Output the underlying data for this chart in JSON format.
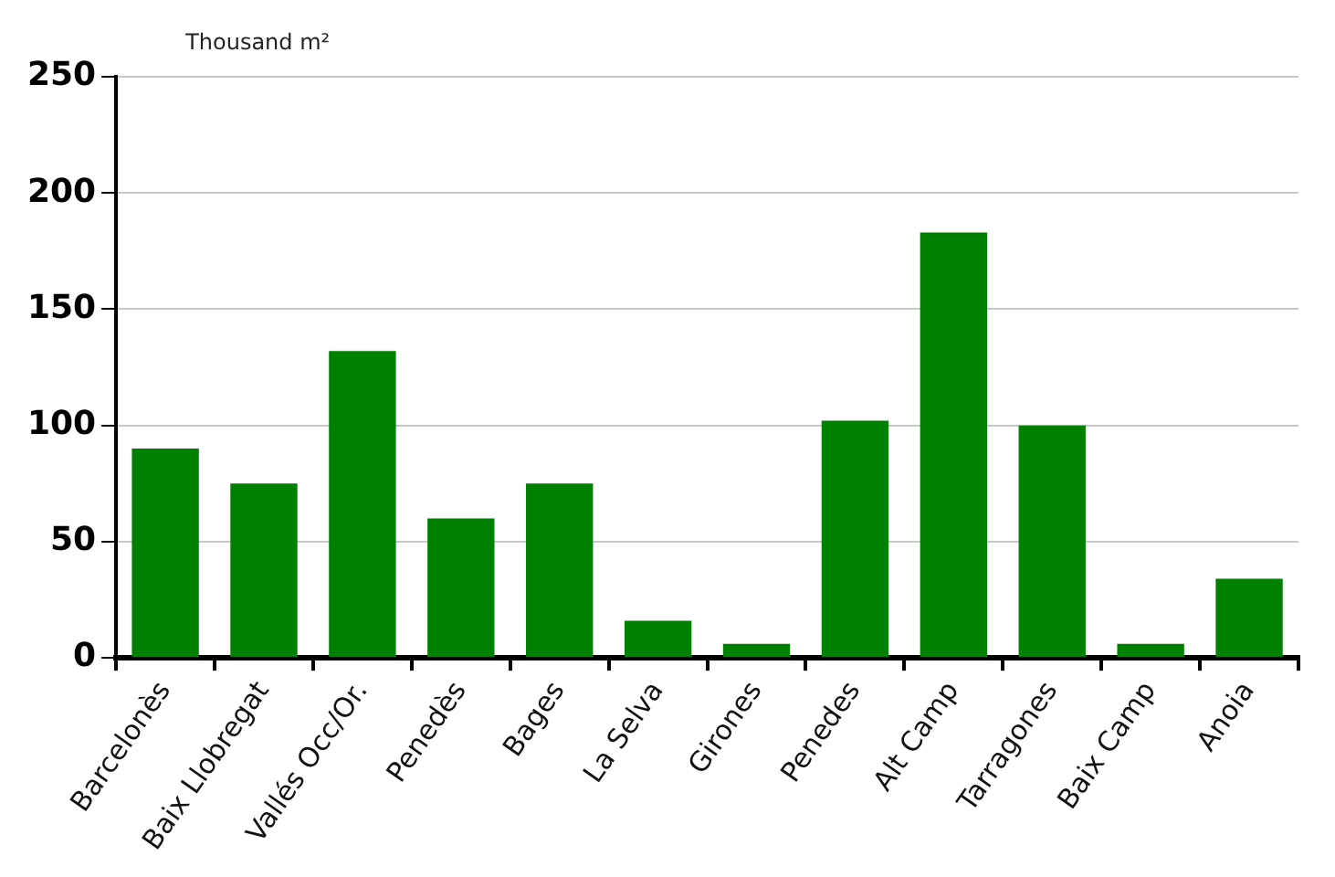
{
  "chart_data": {
    "type": "bar",
    "ylabel": "Thousand m²",
    "categories": [
      "Barcelonès",
      "Baix Llobregat",
      "Vallés Occ/Or.",
      "Penedès",
      "Bages",
      "La Selva",
      "Girones",
      "Penedes",
      "Alt Camp",
      "Tarragones",
      "Baix Camp",
      "Anoia"
    ],
    "values": [
      90,
      75,
      132,
      60,
      75,
      16,
      6,
      102,
      183,
      100,
      6,
      34
    ],
    "color": "#008000",
    "ylim": [
      0,
      250
    ],
    "yticks": [
      0,
      50,
      100,
      150,
      200,
      250
    ],
    "grid": "y",
    "legend": false
  }
}
